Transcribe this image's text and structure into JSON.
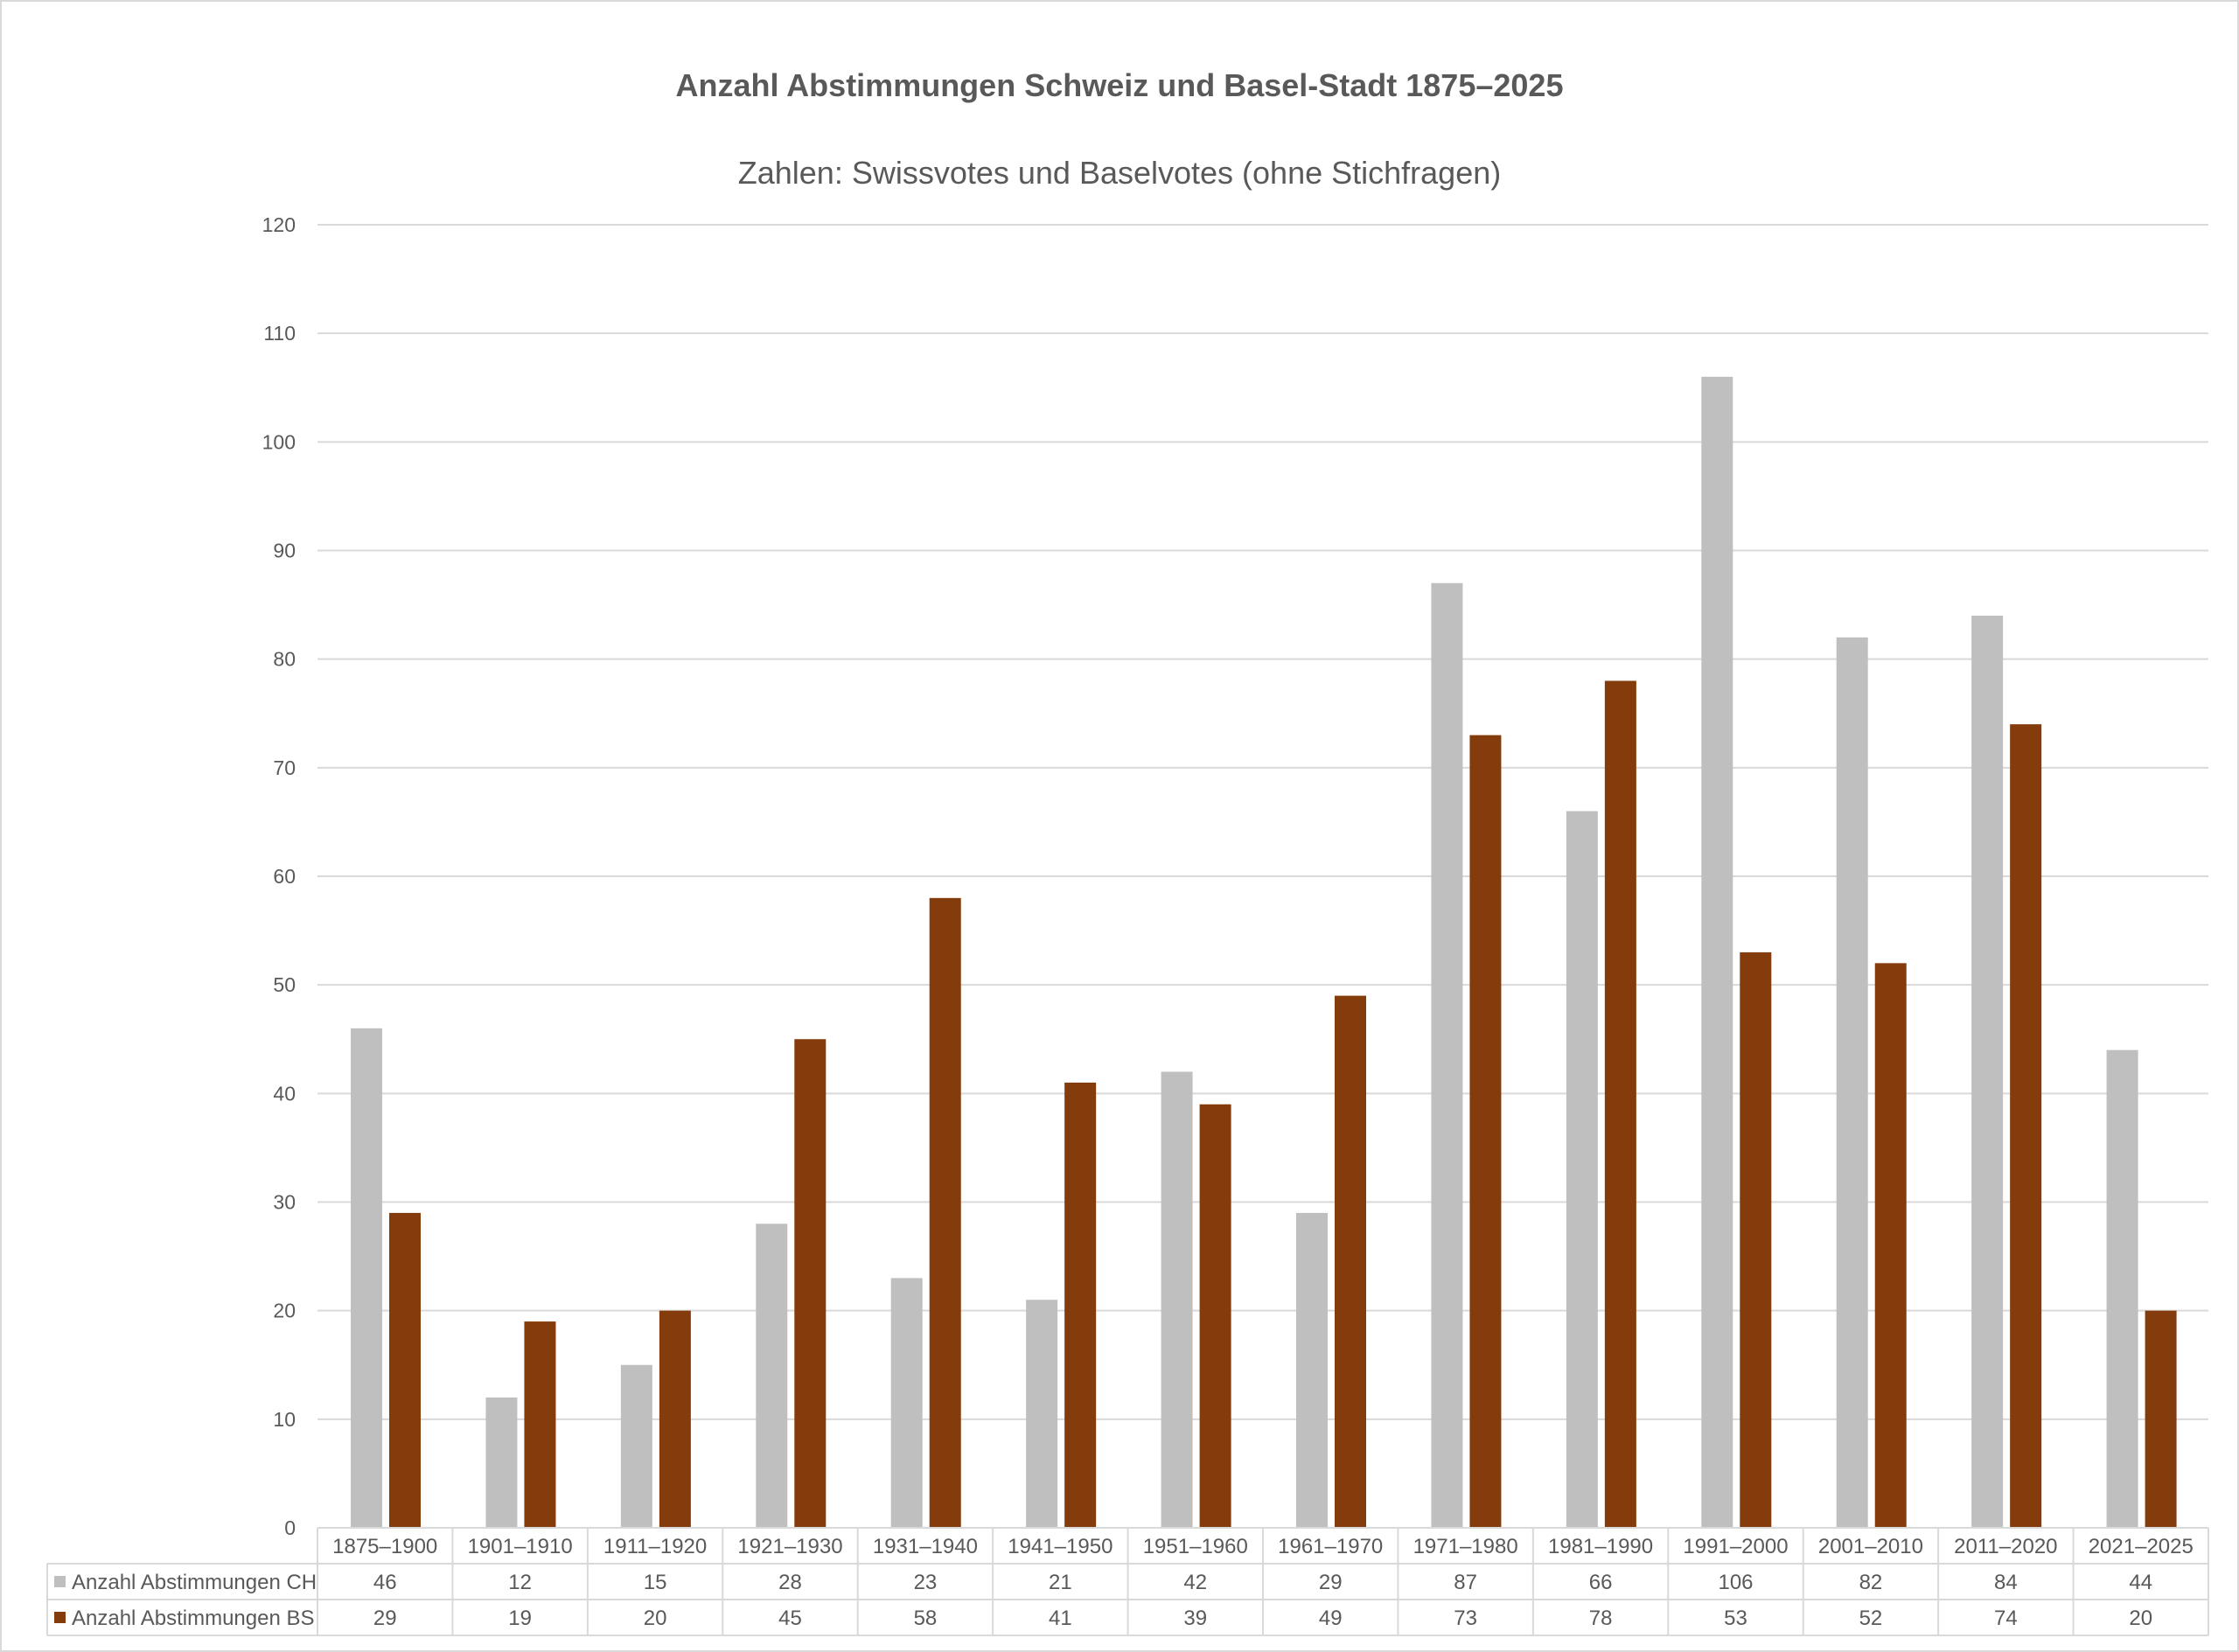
{
  "chart_data": {
    "type": "bar",
    "title": "Anzahl Abstimmungen Schweiz und Basel-Stadt 1875–2025",
    "subtitle": "Zahlen: Swissvotes und Baselvotes (ohne Stichfragen)",
    "xlabel": "",
    "ylabel": "",
    "ylim": [
      0,
      120
    ],
    "yticks": [
      0,
      10,
      20,
      30,
      40,
      50,
      60,
      70,
      80,
      90,
      100,
      110,
      120
    ],
    "grid": true,
    "legend": "data-table-bottom",
    "categories": [
      "1875–1900",
      "1901–1910",
      "1911–1920",
      "1921–1930",
      "1931–1940",
      "1941–1950",
      "1951–1960",
      "1961–1970",
      "1971–1980",
      "1981–1990",
      "1991–2000",
      "2001–2010",
      "2011–2020",
      "2021–2025"
    ],
    "series": [
      {
        "name": "Anzahl Abstimmungen CH",
        "color": "#BFBFBF",
        "values": [
          46,
          12,
          15,
          28,
          23,
          21,
          42,
          29,
          87,
          66,
          106,
          82,
          84,
          44
        ]
      },
      {
        "name": "Anzahl Abstimmungen BS",
        "color": "#843C0C",
        "values": [
          29,
          19,
          20,
          45,
          58,
          41,
          39,
          49,
          73,
          78,
          53,
          52,
          74,
          20
        ]
      }
    ]
  }
}
